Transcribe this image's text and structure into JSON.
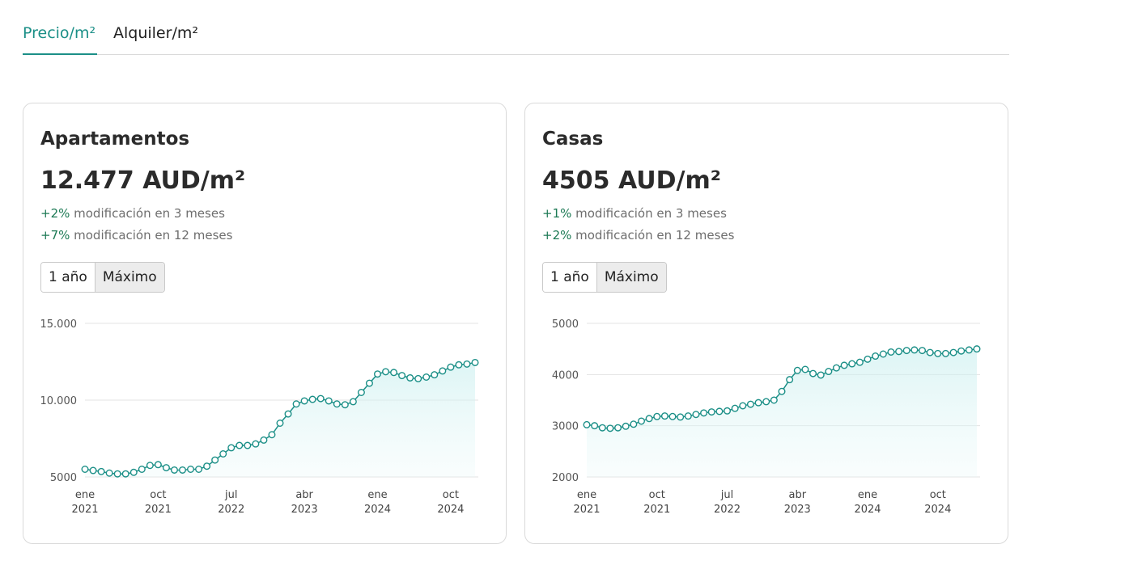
{
  "tabs": [
    {
      "label": "Precio/m²",
      "active": true
    },
    {
      "label": "Alquiler/m²",
      "active": false
    }
  ],
  "range_buttons": {
    "one_year": "1 año",
    "max": "Máximo"
  },
  "colors": {
    "accent": "#1b8f87",
    "positive": "#1d7a55"
  },
  "cards": [
    {
      "title": "Apartamentos",
      "price": "12.477 AUD/m²",
      "change_3m_pct": "+2%",
      "change_3m_text": " modificación en 3 meses",
      "change_12m_pct": "+7%",
      "change_12m_text": " modificación en 12 meses"
    },
    {
      "title": "Casas",
      "price": "4505 AUD/m²",
      "change_3m_pct": "+1%",
      "change_3m_text": " modificación en 3 meses",
      "change_12m_pct": "+2%",
      "change_12m_text": " modificación en 12 meses"
    }
  ],
  "chart_data": [
    {
      "type": "area",
      "title": "Apartamentos",
      "ylim": [
        5000,
        15000
      ],
      "yticks": [
        {
          "value": 5000,
          "label": "5000"
        },
        {
          "value": 10000,
          "label": "10.000"
        },
        {
          "value": 15000,
          "label": "15.000"
        }
      ],
      "xticks": [
        {
          "index": 0,
          "month": "ene",
          "year": "2021"
        },
        {
          "index": 9,
          "month": "oct",
          "year": "2021"
        },
        {
          "index": 18,
          "month": "jul",
          "year": "2022"
        },
        {
          "index": 27,
          "month": "abr",
          "year": "2023"
        },
        {
          "index": 36,
          "month": "ene",
          "year": "2024"
        },
        {
          "index": 45,
          "month": "oct",
          "year": "2024"
        }
      ],
      "values": [
        5500,
        5420,
        5350,
        5250,
        5200,
        5200,
        5300,
        5500,
        5750,
        5800,
        5600,
        5450,
        5450,
        5500,
        5500,
        5700,
        6100,
        6500,
        6900,
        7050,
        7050,
        7150,
        7400,
        7750,
        8500,
        9100,
        9750,
        9950,
        10050,
        10100,
        9950,
        9750,
        9700,
        9900,
        10500,
        11100,
        11700,
        11850,
        11800,
        11600,
        11450,
        11400,
        11500,
        11650,
        11900,
        12150,
        12300,
        12350,
        12450
      ]
    },
    {
      "type": "area",
      "title": "Casas",
      "ylim": [
        2000,
        5000
      ],
      "yticks": [
        {
          "value": 2000,
          "label": "2000"
        },
        {
          "value": 3000,
          "label": "3000"
        },
        {
          "value": 4000,
          "label": "4000"
        },
        {
          "value": 5000,
          "label": "5000"
        }
      ],
      "xticks": [
        {
          "index": 0,
          "month": "ene",
          "year": "2021"
        },
        {
          "index": 9,
          "month": "oct",
          "year": "2021"
        },
        {
          "index": 18,
          "month": "jul",
          "year": "2022"
        },
        {
          "index": 27,
          "month": "abr",
          "year": "2023"
        },
        {
          "index": 36,
          "month": "ene",
          "year": "2024"
        },
        {
          "index": 45,
          "month": "oct",
          "year": "2024"
        }
      ],
      "values": [
        3020,
        3000,
        2960,
        2950,
        2960,
        2990,
        3030,
        3090,
        3140,
        3180,
        3190,
        3180,
        3170,
        3190,
        3220,
        3250,
        3270,
        3280,
        3290,
        3340,
        3390,
        3420,
        3450,
        3470,
        3500,
        3670,
        3900,
        4080,
        4100,
        4020,
        3990,
        4060,
        4130,
        4180,
        4210,
        4240,
        4300,
        4360,
        4400,
        4440,
        4450,
        4470,
        4480,
        4470,
        4430,
        4410,
        4410,
        4430,
        4460,
        4480,
        4500
      ]
    }
  ]
}
